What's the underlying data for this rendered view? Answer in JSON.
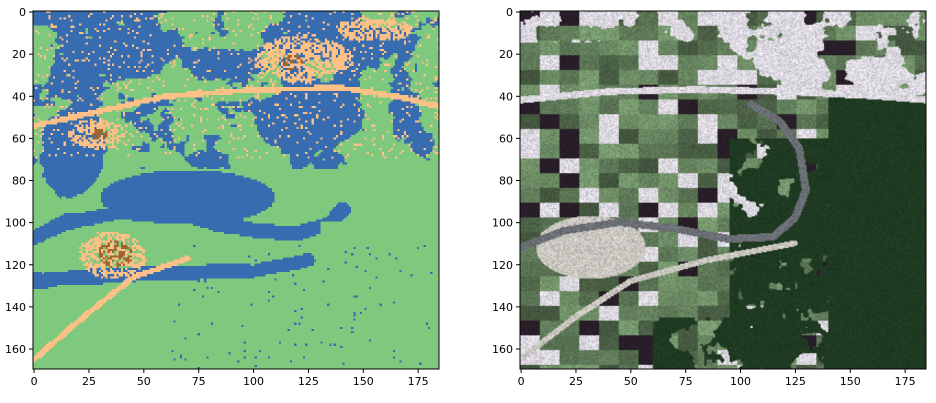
{
  "chart_data": [
    {
      "type": "heatmap",
      "title": "",
      "xlabel": "",
      "ylabel": "",
      "xlim": [
        0,
        185
      ],
      "ylim": [
        170,
        0
      ],
      "x_ticks": [
        0,
        25,
        50,
        75,
        100,
        125,
        150,
        175
      ],
      "y_ticks": [
        0,
        20,
        40,
        60,
        80,
        100,
        120,
        140,
        160
      ],
      "grid": false,
      "colormap": "categorical",
      "classes": [
        {
          "id": 0,
          "color": "#7fc97f",
          "share": 0.5
        },
        {
          "id": 1,
          "color": "#386cb0",
          "share": 0.32
        },
        {
          "id": 2,
          "color": "#fdc086",
          "share": 0.15
        },
        {
          "id": 3,
          "color": "#a0642e",
          "share": 0.03
        }
      ],
      "features": [
        {
          "class": 1,
          "kind": "lake",
          "center": [
            70,
            88
          ],
          "radius": [
            40,
            13
          ]
        },
        {
          "class": 1,
          "kind": "river",
          "points": [
            [
              0,
              107
            ],
            [
              15,
              100
            ],
            [
              40,
              95
            ],
            [
              70,
              97
            ],
            [
              100,
              104
            ],
            [
              120,
              105
            ],
            [
              135,
              100
            ],
            [
              140,
              94
            ]
          ]
        },
        {
          "class": 1,
          "kind": "river",
          "points": [
            [
              0,
              128
            ],
            [
              20,
              126
            ],
            [
              60,
              124
            ],
            [
              100,
              123
            ],
            [
              125,
              118
            ]
          ]
        },
        {
          "class": 1,
          "kind": "block",
          "center": [
            18,
            65
          ],
          "radius": [
            16,
            22
          ]
        },
        {
          "class": 1,
          "kind": "block",
          "center": [
            125,
            50
          ],
          "radius": [
            25,
            16
          ]
        },
        {
          "class": 1,
          "kind": "block",
          "center": [
            45,
            20
          ],
          "radius": [
            22,
            12
          ]
        },
        {
          "class": 1,
          "kind": "block",
          "center": [
            140,
            15
          ],
          "radius": [
            25,
            10
          ]
        },
        {
          "class": 2,
          "kind": "road",
          "points": [
            [
              0,
              54
            ],
            [
              30,
              47
            ],
            [
              60,
              40
            ],
            [
              100,
              37
            ],
            [
              140,
              36
            ],
            [
              165,
              40
            ],
            [
              185,
              45
            ]
          ]
        },
        {
          "class": 2,
          "kind": "road",
          "points": [
            [
              0,
              165
            ],
            [
              20,
              147
            ],
            [
              45,
              126
            ],
            [
              70,
              117
            ]
          ]
        },
        {
          "class": 2,
          "kind": "settlement",
          "center": [
            122,
            22
          ],
          "radius": [
            22,
            12
          ]
        },
        {
          "class": 2,
          "kind": "settlement",
          "center": [
            36,
            115
          ],
          "radius": [
            17,
            12
          ]
        },
        {
          "class": 2,
          "kind": "settlement",
          "center": [
            30,
            58
          ],
          "radius": [
            15,
            8
          ]
        },
        {
          "class": 2,
          "kind": "settlement",
          "center": [
            155,
            8
          ],
          "radius": [
            18,
            6
          ]
        },
        {
          "class": 3,
          "kind": "core",
          "center": [
            37,
            115
          ],
          "radius": [
            9,
            7
          ]
        },
        {
          "class": 3,
          "kind": "core",
          "center": [
            118,
            24
          ],
          "radius": [
            5,
            4
          ]
        },
        {
          "class": 3,
          "kind": "core",
          "center": [
            30,
            58
          ],
          "radius": [
            4,
            3
          ]
        }
      ]
    },
    {
      "type": "heatmap",
      "title": "",
      "xlabel": "",
      "ylabel": "",
      "xlim": [
        0,
        185
      ],
      "ylim": [
        170,
        0
      ],
      "x_ticks": [
        0,
        25,
        50,
        75,
        100,
        125,
        150,
        175
      ],
      "y_ticks": [
        0,
        20,
        40,
        60,
        80,
        100,
        120,
        140,
        160
      ],
      "grid": false,
      "colormap": "rgb-image",
      "surfaces": [
        {
          "name": "forest",
          "color": "#1f3a22"
        },
        {
          "name": "fields",
          "color": "#5f7a58"
        },
        {
          "name": "urban",
          "color": "#dcd8e0"
        },
        {
          "name": "bare",
          "color": "#c9c6c0"
        },
        {
          "name": "river",
          "color": "#6b6f75"
        }
      ]
    }
  ]
}
